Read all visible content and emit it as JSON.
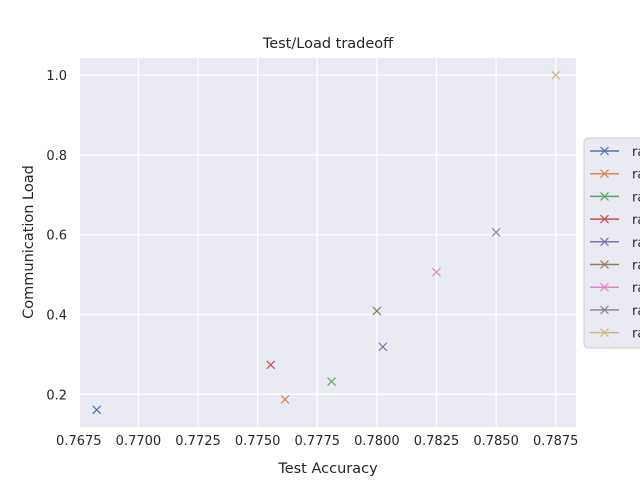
{
  "chart_data": {
    "type": "scatter",
    "title": "Test/Load tradeoff",
    "xlabel": "Test Accuracy",
    "ylabel": "Communication Load",
    "xlim": [
      0.76755,
      0.78835
    ],
    "ylim": [
      0.118,
      1.043
    ],
    "xticks": [
      "0.7675",
      "0.7700",
      "0.7725",
      "0.7750",
      "0.7775",
      "0.7800",
      "0.7825",
      "0.7850",
      "0.7875"
    ],
    "yticks": [
      "0.2",
      "0.4",
      "0.6",
      "0.8",
      "1.0"
    ],
    "grid": true,
    "legend_position": "right, outside plot",
    "marker": "x",
    "series": [
      {
        "name": "ra",
        "color": "#4c72b0",
        "x": 0.76825,
        "y": 0.161
      },
      {
        "name": "ra",
        "color": "#dd8452",
        "x": 0.77615,
        "y": 0.187
      },
      {
        "name": "ra",
        "color": "#55a868",
        "x": 0.7781,
        "y": 0.232
      },
      {
        "name": "ra",
        "color": "#c44e52",
        "x": 0.77555,
        "y": 0.274
      },
      {
        "name": "ra",
        "color": "#8172b3",
        "x": 0.78025,
        "y": 0.319
      },
      {
        "name": "ra",
        "color": "#937860",
        "x": 0.78,
        "y": 0.409
      },
      {
        "name": "ra",
        "color": "#da8bc3",
        "x": 0.7825,
        "y": 0.506
      },
      {
        "name": "ra",
        "color": "#8c8c8c",
        "x": 0.785,
        "y": 0.606
      },
      {
        "name": "ra",
        "color": "#ccb974",
        "x": 0.7875,
        "y": 1.0
      }
    ]
  }
}
